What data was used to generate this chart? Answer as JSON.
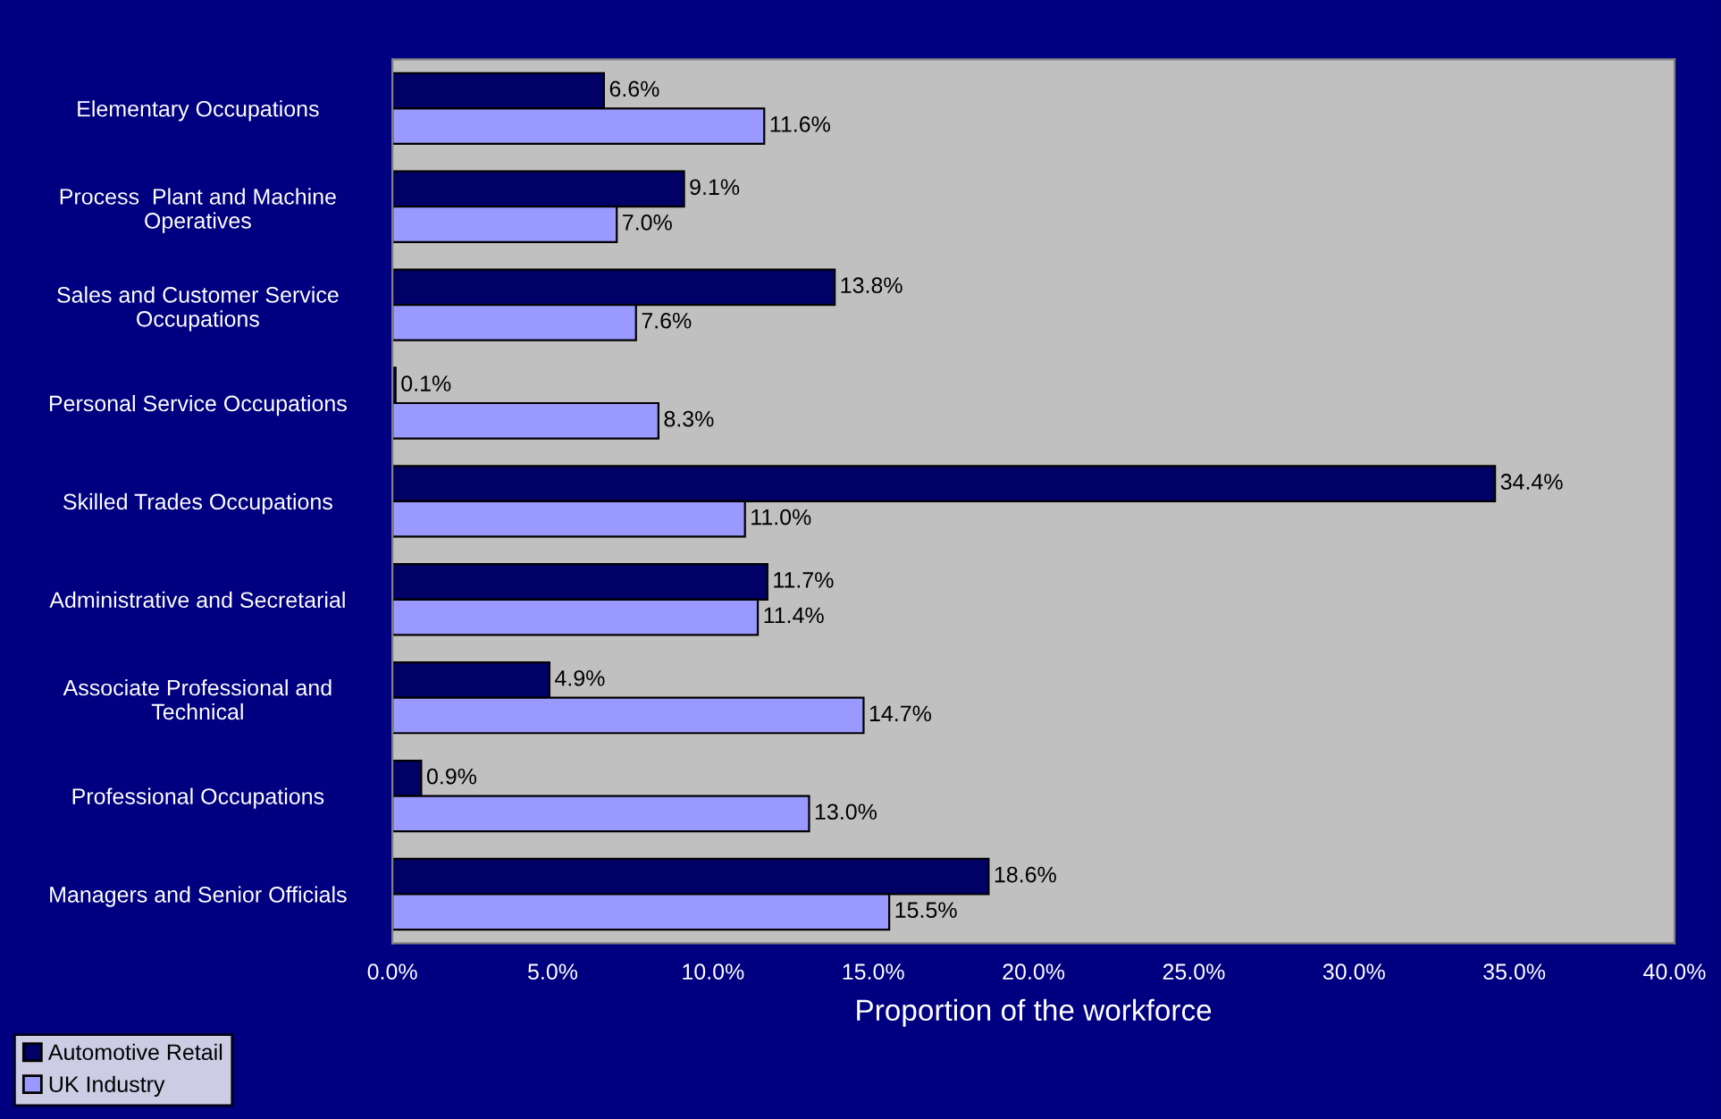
{
  "chart_data": {
    "type": "bar",
    "orientation": "horizontal",
    "xlabel": "Proportion of the workforce",
    "categories": [
      "Elementary Occupations",
      "Process  Plant and Machine\nOperatives",
      "Sales and Customer Service\nOccupations",
      "Personal Service Occupations",
      "Skilled Trades Occupations",
      "Administrative and Secretarial",
      "Associate Professional and\nTechnical",
      "Professional Occupations",
      "Managers and Senior Officials"
    ],
    "series": [
      {
        "name": "Automotive Retail",
        "color": "#000066",
        "values": [
          6.6,
          9.1,
          13.8,
          0.1,
          34.4,
          11.7,
          4.9,
          0.9,
          18.6
        ],
        "value_labels": [
          "6.6%",
          "9.1%",
          "13.8%",
          "0.1%",
          "34.4%",
          "11.7%",
          "4.9%",
          "0.9%",
          "18.6%"
        ]
      },
      {
        "name": "UK Industry",
        "color": "#9999ff",
        "values": [
          11.6,
          7.0,
          7.6,
          8.3,
          11.0,
          11.4,
          14.7,
          13.0,
          15.5
        ],
        "value_labels": [
          "11.6%",
          "7.0%",
          "7.6%",
          "8.3%",
          "11.0%",
          "11.4%",
          "14.7%",
          "13.0%",
          "15.5%"
        ]
      }
    ],
    "xlim": [
      0,
      40
    ],
    "xticks": [
      {
        "value": 0,
        "label": "0.0%"
      },
      {
        "value": 5,
        "label": "5.0%"
      },
      {
        "value": 10,
        "label": "10.0%"
      },
      {
        "value": 15,
        "label": "15.0%"
      },
      {
        "value": 20,
        "label": "20.0%"
      },
      {
        "value": 25,
        "label": "25.0%"
      },
      {
        "value": 30,
        "label": "30.0%"
      },
      {
        "value": 35,
        "label": "35.0%"
      },
      {
        "value": 40,
        "label": "40.0%"
      }
    ],
    "grid": false,
    "legend": "bottom left"
  }
}
